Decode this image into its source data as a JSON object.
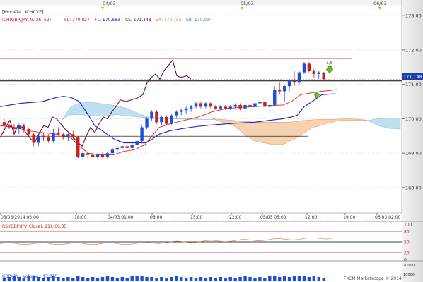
{
  "window": {
    "module_title": "[Modèle : ICHCYP]",
    "ichimoku_legend": {
      "main": "ICH(GBP/JPY, 9, 26, 52)",
      "sl": "SL: 170,827",
      "tl": "TL: 170,683",
      "cs": "CS: 171,148",
      "sa": "SA: 170,755",
      "sb": "SB: 170,094"
    },
    "rsi_legend": "RSI(GBP/JPY(Close), 21): 66,35",
    "volume_legend": "GBP/JPY - Volume : 17 815",
    "watermark": "FXCM Marketscope © 2014"
  },
  "colors": {
    "up_candle": "#1a4fd6",
    "down_candle": "#c81e1e",
    "chikou": "#6b0d3a",
    "kijun": "#1c1cc8",
    "tenkan": "#e02020",
    "cloud_bull": "#bfe0f0",
    "cloud_bear": "#f6d2b0",
    "resistance": "#c80000",
    "support": "#000000"
  },
  "price_badge": "171,148",
  "arrow_note": "1,8",
  "chart_data": [
    {
      "type": "candlestick",
      "title": "GBP/JPY",
      "y_axis_ticks": [
        "173,00",
        "172,00",
        "171,00",
        "170,00",
        "169,00",
        "168,00"
      ],
      "ylim": [
        167.3,
        173.25
      ],
      "top_date_markers": [
        "04/03",
        "05/03",
        "06/03"
      ],
      "x_axis_ticks": [
        "03/03/2014 03:00",
        "18:00",
        "04/03 01:00",
        "08:00",
        "15:00",
        "22:00",
        "05/03 05:00",
        "12:00",
        "19:00",
        "06/03 02:00"
      ],
      "horizontal_lines": [
        171.75,
        171.1,
        169.5
      ],
      "candles": [
        {
          "o": 169.9,
          "h": 170.0,
          "l": 169.75,
          "c": 169.8
        },
        {
          "o": 169.8,
          "h": 169.85,
          "l": 169.7,
          "c": 169.75
        },
        {
          "o": 169.75,
          "h": 169.85,
          "l": 169.6,
          "c": 169.7
        },
        {
          "o": 169.7,
          "h": 169.85,
          "l": 169.55,
          "c": 169.8
        },
        {
          "o": 169.8,
          "h": 169.85,
          "l": 169.6,
          "c": 169.7
        },
        {
          "o": 169.7,
          "h": 169.75,
          "l": 169.45,
          "c": 169.55
        },
        {
          "o": 169.55,
          "h": 169.6,
          "l": 169.2,
          "c": 169.3
        },
        {
          "o": 169.3,
          "h": 169.55,
          "l": 169.2,
          "c": 169.5
        },
        {
          "o": 169.5,
          "h": 169.6,
          "l": 169.35,
          "c": 169.45
        },
        {
          "o": 169.45,
          "h": 169.55,
          "l": 169.3,
          "c": 169.35
        },
        {
          "o": 169.35,
          "h": 169.7,
          "l": 169.3,
          "c": 169.6
        },
        {
          "o": 169.6,
          "h": 169.75,
          "l": 169.5,
          "c": 169.55
        },
        {
          "o": 169.55,
          "h": 169.6,
          "l": 169.4,
          "c": 169.45
        },
        {
          "o": 169.45,
          "h": 169.6,
          "l": 169.35,
          "c": 169.55
        },
        {
          "o": 169.55,
          "h": 169.65,
          "l": 169.4,
          "c": 169.45
        },
        {
          "o": 169.45,
          "h": 169.5,
          "l": 168.85,
          "c": 168.9
        },
        {
          "o": 168.9,
          "h": 169.05,
          "l": 168.8,
          "c": 169.0
        },
        {
          "o": 169.0,
          "h": 169.05,
          "l": 168.85,
          "c": 168.95
        },
        {
          "o": 168.95,
          "h": 169.0,
          "l": 168.85,
          "c": 168.9
        },
        {
          "o": 168.9,
          "h": 169.0,
          "l": 168.85,
          "c": 168.95
        },
        {
          "o": 168.95,
          "h": 169.05,
          "l": 168.85,
          "c": 168.9
        },
        {
          "o": 168.9,
          "h": 169.05,
          "l": 168.85,
          "c": 169.0
        },
        {
          "o": 169.0,
          "h": 169.15,
          "l": 168.95,
          "c": 169.1
        },
        {
          "o": 169.1,
          "h": 169.2,
          "l": 169.05,
          "c": 169.15
        },
        {
          "o": 169.15,
          "h": 169.25,
          "l": 169.1,
          "c": 169.2
        },
        {
          "o": 169.2,
          "h": 169.25,
          "l": 169.1,
          "c": 169.15
        },
        {
          "o": 169.15,
          "h": 169.3,
          "l": 169.1,
          "c": 169.25
        },
        {
          "o": 169.25,
          "h": 169.4,
          "l": 169.2,
          "c": 169.35
        },
        {
          "o": 169.35,
          "h": 169.8,
          "l": 169.3,
          "c": 169.75
        },
        {
          "o": 169.75,
          "h": 170.05,
          "l": 169.7,
          "c": 170.0
        },
        {
          "o": 170.0,
          "h": 170.25,
          "l": 169.95,
          "c": 170.2
        },
        {
          "o": 170.2,
          "h": 170.25,
          "l": 169.85,
          "c": 169.9
        },
        {
          "o": 169.9,
          "h": 170.1,
          "l": 169.8,
          "c": 170.05
        },
        {
          "o": 170.05,
          "h": 170.1,
          "l": 169.8,
          "c": 169.85
        },
        {
          "o": 169.85,
          "h": 170.15,
          "l": 169.8,
          "c": 170.1
        },
        {
          "o": 170.1,
          "h": 170.25,
          "l": 170.0,
          "c": 170.2
        },
        {
          "o": 170.2,
          "h": 170.3,
          "l": 170.1,
          "c": 170.25
        },
        {
          "o": 170.25,
          "h": 170.35,
          "l": 170.15,
          "c": 170.3
        },
        {
          "o": 170.3,
          "h": 170.4,
          "l": 170.2,
          "c": 170.35
        },
        {
          "o": 170.35,
          "h": 170.5,
          "l": 170.3,
          "c": 170.45
        },
        {
          "o": 170.45,
          "h": 170.5,
          "l": 170.3,
          "c": 170.35
        },
        {
          "o": 170.35,
          "h": 170.5,
          "l": 170.3,
          "c": 170.45
        },
        {
          "o": 170.45,
          "h": 170.5,
          "l": 170.3,
          "c": 170.35
        },
        {
          "o": 170.35,
          "h": 170.4,
          "l": 170.25,
          "c": 170.3
        },
        {
          "o": 170.3,
          "h": 170.4,
          "l": 170.25,
          "c": 170.35
        },
        {
          "o": 170.35,
          "h": 170.4,
          "l": 170.25,
          "c": 170.3
        },
        {
          "o": 170.3,
          "h": 170.4,
          "l": 170.25,
          "c": 170.35
        },
        {
          "o": 170.35,
          "h": 170.45,
          "l": 170.3,
          "c": 170.4
        },
        {
          "o": 170.4,
          "h": 170.45,
          "l": 170.25,
          "c": 170.3
        },
        {
          "o": 170.3,
          "h": 170.45,
          "l": 170.25,
          "c": 170.4
        },
        {
          "o": 170.4,
          "h": 170.45,
          "l": 170.3,
          "c": 170.35
        },
        {
          "o": 170.35,
          "h": 170.5,
          "l": 170.3,
          "c": 170.45
        },
        {
          "o": 170.45,
          "h": 170.55,
          "l": 170.4,
          "c": 170.5
        },
        {
          "o": 170.5,
          "h": 170.55,
          "l": 170.3,
          "c": 170.35
        },
        {
          "o": 170.35,
          "h": 170.45,
          "l": 170.15,
          "c": 170.4
        },
        {
          "o": 170.4,
          "h": 170.95,
          "l": 170.35,
          "c": 170.85
        },
        {
          "o": 170.85,
          "h": 171.05,
          "l": 170.7,
          "c": 170.8
        },
        {
          "o": 170.8,
          "h": 171.0,
          "l": 170.5,
          "c": 170.95
        },
        {
          "o": 170.95,
          "h": 171.15,
          "l": 170.8,
          "c": 171.1
        },
        {
          "o": 171.1,
          "h": 171.4,
          "l": 170.95,
          "c": 171.05
        },
        {
          "o": 171.05,
          "h": 171.4,
          "l": 171.0,
          "c": 171.35
        },
        {
          "o": 171.35,
          "h": 171.65,
          "l": 171.3,
          "c": 171.6
        },
        {
          "o": 171.6,
          "h": 171.65,
          "l": 171.35,
          "c": 171.4
        },
        {
          "o": 171.4,
          "h": 171.45,
          "l": 171.2,
          "c": 171.3
        },
        {
          "o": 171.3,
          "h": 171.4,
          "l": 171.15,
          "c": 171.35
        },
        {
          "o": 171.35,
          "h": 171.35,
          "l": 171.1,
          "c": 171.15
        }
      ]
    },
    {
      "type": "line",
      "title": "RSI",
      "y_axis_ticks": [
        "100",
        "80",
        "50",
        "20",
        "0"
      ],
      "ylim": [
        0,
        100
      ],
      "reference_levels": [
        80,
        50,
        20
      ]
    },
    {
      "type": "bar",
      "title": "Volume",
      "y_axis_ticks": [
        "20000",
        "10000"
      ]
    }
  ]
}
